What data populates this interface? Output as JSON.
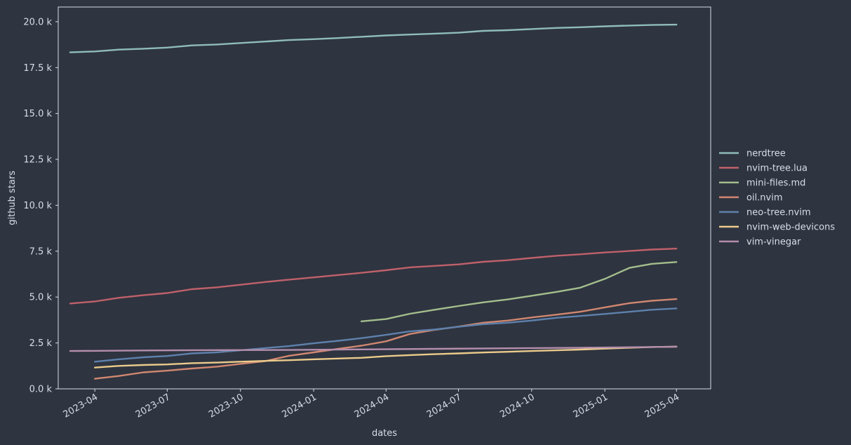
{
  "chart_data": {
    "type": "line",
    "xlabel": "dates",
    "ylabel": "github stars",
    "xlim": [
      "2023-02-14",
      "2025-05-14"
    ],
    "ylim": [
      0,
      20800
    ],
    "grid": false,
    "legend_position": "right",
    "colors": {
      "background": "#2e3440",
      "plot_border": "#d8dee9",
      "text": "#d8dee9"
    },
    "x_ticks": [
      {
        "date": "2023-04-01",
        "label": "2023-04"
      },
      {
        "date": "2023-07-01",
        "label": "2023-07"
      },
      {
        "date": "2023-10-01",
        "label": "2023-10"
      },
      {
        "date": "2024-01-01",
        "label": "2024-01"
      },
      {
        "date": "2024-04-01",
        "label": "2024-04"
      },
      {
        "date": "2024-07-01",
        "label": "2024-07"
      },
      {
        "date": "2024-10-01",
        "label": "2024-10"
      },
      {
        "date": "2025-01-01",
        "label": "2025-01"
      },
      {
        "date": "2025-04-01",
        "label": "2025-04"
      }
    ],
    "y_ticks": [
      {
        "value": 0,
        "label": "0.0 k"
      },
      {
        "value": 2500,
        "label": "2.5 k"
      },
      {
        "value": 5000,
        "label": "5.0 k"
      },
      {
        "value": 7500,
        "label": "7.5 k"
      },
      {
        "value": 10000,
        "label": "10.0 k"
      },
      {
        "value": 12500,
        "label": "12.5 k"
      },
      {
        "value": 15000,
        "label": "15.0 k"
      },
      {
        "value": 17500,
        "label": "17.5 k"
      },
      {
        "value": 20000,
        "label": "20.0 k"
      }
    ],
    "series": [
      {
        "name": "nerdtree",
        "color": "#8fbcbb",
        "x": [
          "2023-03-01",
          "2023-04-01",
          "2023-05-01",
          "2023-06-01",
          "2023-07-01",
          "2023-08-01",
          "2023-09-01",
          "2023-10-01",
          "2023-11-01",
          "2023-12-01",
          "2024-01-01",
          "2024-02-01",
          "2024-03-01",
          "2024-04-01",
          "2024-05-01",
          "2024-06-01",
          "2024-07-01",
          "2024-08-01",
          "2024-09-01",
          "2024-10-01",
          "2024-11-01",
          "2024-12-01",
          "2025-01-01",
          "2025-02-01",
          "2025-03-01",
          "2025-04-01"
        ],
        "y": [
          18330,
          18380,
          18480,
          18530,
          18590,
          18710,
          18760,
          18840,
          18920,
          19000,
          19050,
          19110,
          19180,
          19250,
          19300,
          19350,
          19400,
          19500,
          19540,
          19600,
          19660,
          19700,
          19750,
          19790,
          19820,
          19840
        ]
      },
      {
        "name": "nvim-tree.lua",
        "color": "#bf616a",
        "x": [
          "2023-03-01",
          "2023-04-01",
          "2023-05-01",
          "2023-06-01",
          "2023-07-01",
          "2023-08-01",
          "2023-09-01",
          "2023-10-01",
          "2023-11-01",
          "2023-12-01",
          "2024-01-01",
          "2024-02-01",
          "2024-03-01",
          "2024-04-01",
          "2024-05-01",
          "2024-06-01",
          "2024-07-01",
          "2024-08-01",
          "2024-09-01",
          "2024-10-01",
          "2024-11-01",
          "2024-12-01",
          "2025-01-01",
          "2025-02-01",
          "2025-03-01",
          "2025-04-01"
        ],
        "y": [
          4650,
          4760,
          4960,
          5100,
          5220,
          5430,
          5530,
          5670,
          5820,
          5950,
          6070,
          6200,
          6320,
          6460,
          6620,
          6700,
          6780,
          6920,
          7010,
          7130,
          7250,
          7330,
          7430,
          7510,
          7590,
          7640
        ]
      },
      {
        "name": "mini-files.md",
        "color": "#a3be8c",
        "x": [
          "2024-03-01",
          "2024-04-01",
          "2024-05-01",
          "2024-06-01",
          "2024-07-01",
          "2024-08-01",
          "2024-09-01",
          "2024-10-01",
          "2024-11-01",
          "2024-12-01",
          "2025-01-01",
          "2025-02-01",
          "2025-03-01",
          "2025-04-01"
        ],
        "y": [
          3680,
          3800,
          4090,
          4310,
          4510,
          4710,
          4870,
          5070,
          5280,
          5510,
          5990,
          6590,
          6810,
          6910
        ]
      },
      {
        "name": "oil.nvim",
        "color": "#d08770",
        "x": [
          "2023-04-01",
          "2023-05-01",
          "2023-06-01",
          "2023-07-01",
          "2023-08-01",
          "2023-09-01",
          "2023-10-01",
          "2023-11-01",
          "2023-12-01",
          "2024-01-01",
          "2024-02-01",
          "2024-03-01",
          "2024-04-01",
          "2024-05-01",
          "2024-06-01",
          "2024-07-01",
          "2024-08-01",
          "2024-09-01",
          "2024-10-01",
          "2024-11-01",
          "2024-12-01",
          "2025-01-01",
          "2025-02-01",
          "2025-03-01",
          "2025-04-01"
        ],
        "y": [
          550,
          700,
          900,
          990,
          1110,
          1210,
          1360,
          1510,
          1800,
          1990,
          2180,
          2350,
          2590,
          2990,
          3210,
          3390,
          3600,
          3720,
          3890,
          4040,
          4200,
          4440,
          4670,
          4800,
          4890
        ]
      },
      {
        "name": "neo-tree.nvim",
        "color": "#5e81ac",
        "x": [
          "2023-04-01",
          "2023-05-01",
          "2023-06-01",
          "2023-07-01",
          "2023-08-01",
          "2023-09-01",
          "2023-10-01",
          "2023-11-01",
          "2023-12-01",
          "2024-01-01",
          "2024-02-01",
          "2024-03-01",
          "2024-04-01",
          "2024-05-01",
          "2024-06-01",
          "2024-07-01",
          "2024-08-01",
          "2024-09-01",
          "2024-10-01",
          "2024-11-01",
          "2024-12-01",
          "2025-01-01",
          "2025-02-01",
          "2025-03-01",
          "2025-04-01"
        ],
        "y": [
          1480,
          1610,
          1720,
          1790,
          1930,
          1990,
          2100,
          2220,
          2330,
          2480,
          2620,
          2760,
          2940,
          3130,
          3230,
          3380,
          3520,
          3600,
          3720,
          3870,
          3970,
          4080,
          4200,
          4310,
          4380
        ]
      },
      {
        "name": "nvim-web-devicons",
        "color": "#ebcb8b",
        "x": [
          "2023-04-01",
          "2023-05-01",
          "2023-06-01",
          "2023-07-01",
          "2023-08-01",
          "2023-09-01",
          "2023-10-01",
          "2023-11-01",
          "2023-12-01",
          "2024-01-01",
          "2024-02-01",
          "2024-03-01",
          "2024-04-01",
          "2024-05-01",
          "2024-06-01",
          "2024-07-01",
          "2024-08-01",
          "2024-09-01",
          "2024-10-01",
          "2024-11-01",
          "2024-12-01",
          "2025-01-01",
          "2025-02-01",
          "2025-03-01",
          "2025-04-01"
        ],
        "y": [
          1160,
          1250,
          1300,
          1330,
          1400,
          1430,
          1480,
          1520,
          1560,
          1610,
          1650,
          1690,
          1780,
          1840,
          1890,
          1930,
          1980,
          2020,
          2060,
          2100,
          2140,
          2190,
          2240,
          2280,
          2300
        ]
      },
      {
        "name": "vim-vinegar",
        "color": "#b48ead",
        "x": [
          "2023-03-01",
          "2023-06-01",
          "2023-09-01",
          "2023-12-01",
          "2024-03-01",
          "2024-06-01",
          "2024-09-01",
          "2024-12-01",
          "2025-04-01"
        ],
        "y": [
          2060,
          2090,
          2110,
          2120,
          2150,
          2180,
          2210,
          2240,
          2290
        ]
      }
    ]
  }
}
